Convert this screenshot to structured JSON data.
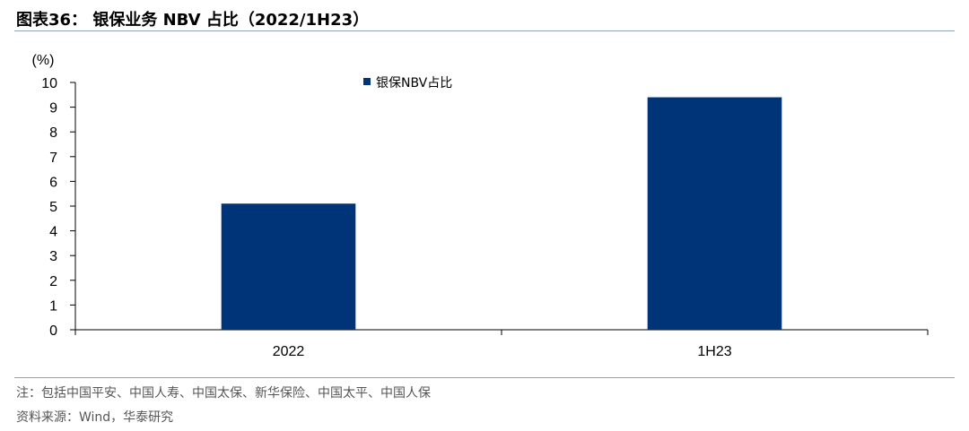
{
  "figure": {
    "title": "图表36： 银保业务 NBV 占比（2022/1H23）"
  },
  "chart_data": {
    "type": "bar",
    "categories": [
      "2022",
      "1H23"
    ],
    "series": [
      {
        "name": "银保NBV占比",
        "values": [
          5.1,
          9.4
        ],
        "color": "#003478"
      }
    ],
    "ylabel": "(%)",
    "ylim": [
      0,
      10
    ],
    "yticks": [
      0,
      1,
      2,
      3,
      4,
      5,
      6,
      7,
      8,
      9,
      10
    ],
    "grid": false,
    "legend_position": "top-center"
  },
  "notes": {
    "note": "注：包括中国平安、中国人寿、中国太保、新华保险、中国太平、中国人保",
    "source": "资料来源：Wind，华泰研究"
  }
}
